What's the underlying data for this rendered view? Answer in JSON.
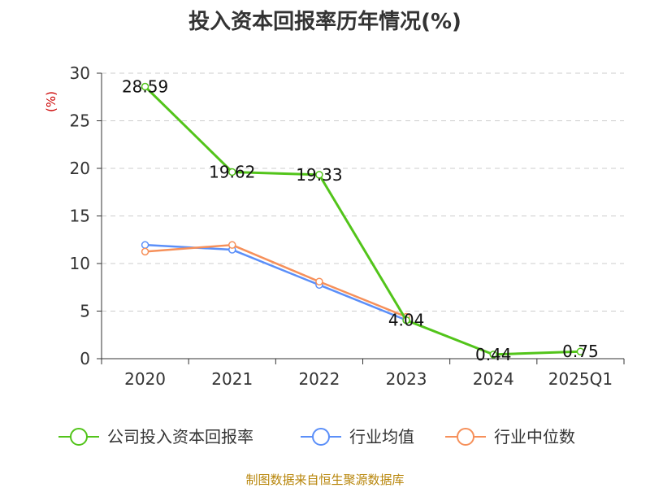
{
  "chart_data": {
    "type": "line",
    "title": "投入资本回报率历年情况(%)",
    "ylabel": "(%)",
    "xlabel": "",
    "categories": [
      "2020",
      "2021",
      "2022",
      "2023",
      "2024",
      "2025Q1"
    ],
    "ylim": [
      0,
      30
    ],
    "yticks": [
      0,
      5,
      10,
      15,
      20,
      25,
      30
    ],
    "grid": true,
    "legend_position": "bottom",
    "series": [
      {
        "name": "公司投入资本回报率",
        "color": "#52c41a",
        "values": [
          28.59,
          19.62,
          19.33,
          4.04,
          0.44,
          0.75
        ],
        "labels": [
          "28.59",
          "19.62",
          "19.33",
          "4.04",
          "0.44",
          "0.75"
        ]
      },
      {
        "name": "行业均值",
        "color": "#5b8ff9",
        "values": [
          11.95,
          11.45,
          7.75,
          4.05,
          null,
          null
        ]
      },
      {
        "name": "行业中位数",
        "color": "#f6905a",
        "values": [
          11.25,
          11.95,
          8.1,
          4.4,
          null,
          null
        ]
      }
    ],
    "source": "制图数据来自恒生聚源数据库",
    "ylabel_color": "#cc0000",
    "source_color": "#b8860b"
  }
}
